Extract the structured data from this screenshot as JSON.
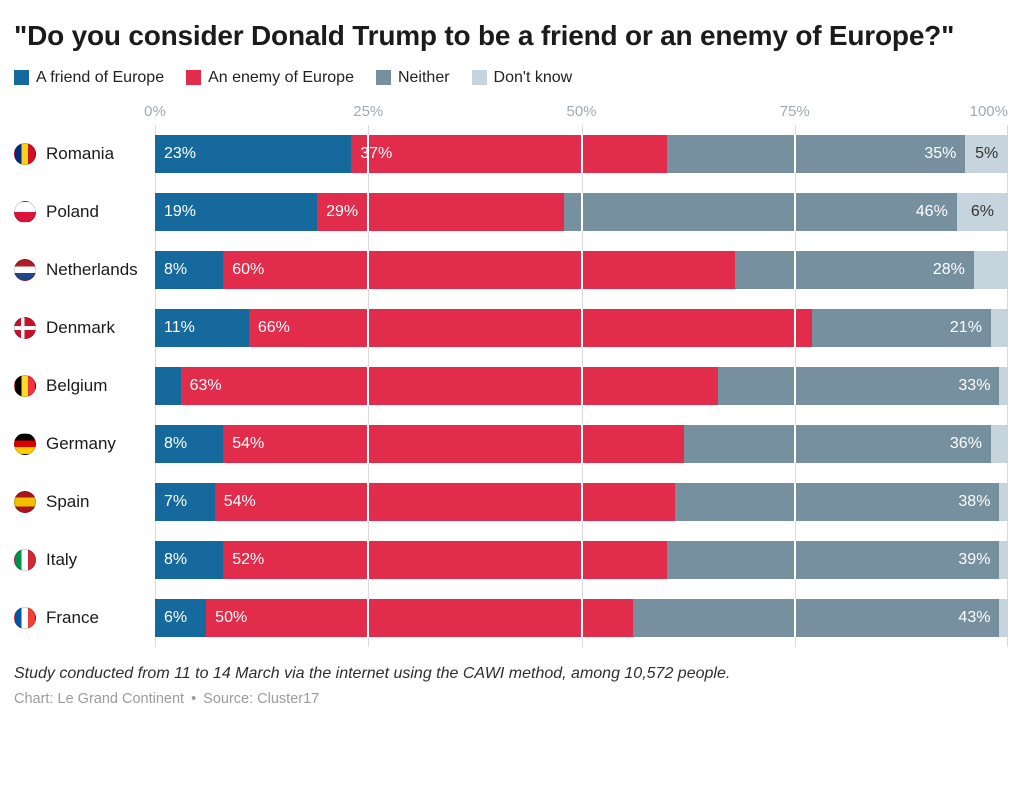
{
  "title": "\"Do you consider Donald Trump to be a friend or an enemy of Europe?\"",
  "legend": [
    {
      "label": "A friend of Europe",
      "color": "#16699c"
    },
    {
      "label": "An enemy of Europe",
      "color": "#e12d4b"
    },
    {
      "label": "Neither",
      "color": "#76909f"
    },
    {
      "label": "Don't know",
      "color": "#c6d4dd"
    }
  ],
  "axis_ticks": [
    "0%",
    "25%",
    "50%",
    "75%",
    "100%"
  ],
  "chart_data": {
    "type": "bar",
    "orientation": "horizontal",
    "stacked": true,
    "xlim": [
      0,
      100
    ],
    "grid": true,
    "legend_position": "top",
    "categories": [
      "Romania",
      "Poland",
      "Netherlands",
      "Denmark",
      "Belgium",
      "Germany",
      "Spain",
      "Italy",
      "France"
    ],
    "flags": [
      "romania",
      "poland",
      "netherlands",
      "denmark",
      "belgium",
      "germany",
      "spain",
      "italy",
      "france"
    ],
    "series": [
      {
        "name": "A friend of Europe",
        "color": "#16699c",
        "align": "start",
        "values": [
          23,
          19,
          8,
          11,
          3,
          8,
          7,
          8,
          6
        ]
      },
      {
        "name": "An enemy of Europe",
        "color": "#e12d4b",
        "align": "start",
        "values": [
          37,
          29,
          60,
          66,
          63,
          54,
          54,
          52,
          50
        ]
      },
      {
        "name": "Neither",
        "color": "#76909f",
        "align": "end",
        "values": [
          35,
          46,
          28,
          21,
          33,
          36,
          38,
          39,
          43
        ]
      },
      {
        "name": "Don't know",
        "color": "#c6d4dd",
        "align": "center",
        "values": [
          5,
          6,
          4,
          2,
          1,
          2,
          1,
          1,
          1
        ]
      }
    ],
    "label_suffix": "%",
    "min_label_value": 5
  },
  "footnote": "Study conducted from 11 to 14 March via the internet using the CAWI method, among 10,572 people.",
  "credit": "Chart: Le Grand Continent",
  "credit_separator": "•",
  "source": "Source: Cluster17"
}
